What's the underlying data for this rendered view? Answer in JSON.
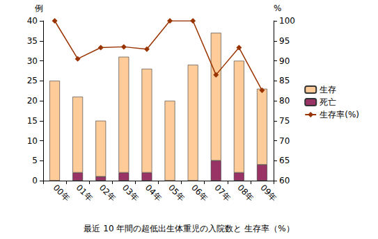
{
  "chart_data": {
    "type": "bar",
    "title": "最近 10 年間の超低出生体重児の入院数と 生存率（%）",
    "categories": [
      "00年",
      "01年",
      "02年",
      "03年",
      "04年",
      "05年",
      "06年",
      "07年",
      "08年",
      "09年"
    ],
    "ylabel": "例",
    "y2label": "%",
    "stacked": true,
    "grid": false,
    "legend": "right",
    "data_labels": false,
    "ylim": [
      0,
      40
    ],
    "yticks": [
      0,
      5,
      10,
      15,
      20,
      25,
      30,
      35,
      40
    ],
    "y2lim": [
      60,
      100
    ],
    "y2ticks": [
      60,
      65,
      70,
      75,
      80,
      85,
      90,
      95,
      100
    ],
    "series": [
      {
        "name": "生存",
        "type": "bar",
        "color": "#ffcc99",
        "values": [
          25,
          19,
          14,
          29,
          26,
          20,
          29,
          32,
          28,
          19
        ]
      },
      {
        "name": "死亡",
        "type": "bar",
        "color": "#993366",
        "values": [
          0,
          2,
          1,
          2,
          2,
          0,
          0,
          5,
          2,
          4
        ]
      },
      {
        "name": "生存率(%)",
        "type": "line",
        "axis": "y2",
        "color": "#993300",
        "marker": "diamond",
        "line_style": "solid",
        "values": [
          100,
          90.5,
          93.3,
          93.5,
          92.9,
          100,
          100,
          86.5,
          93.3,
          82.6
        ]
      }
    ]
  }
}
